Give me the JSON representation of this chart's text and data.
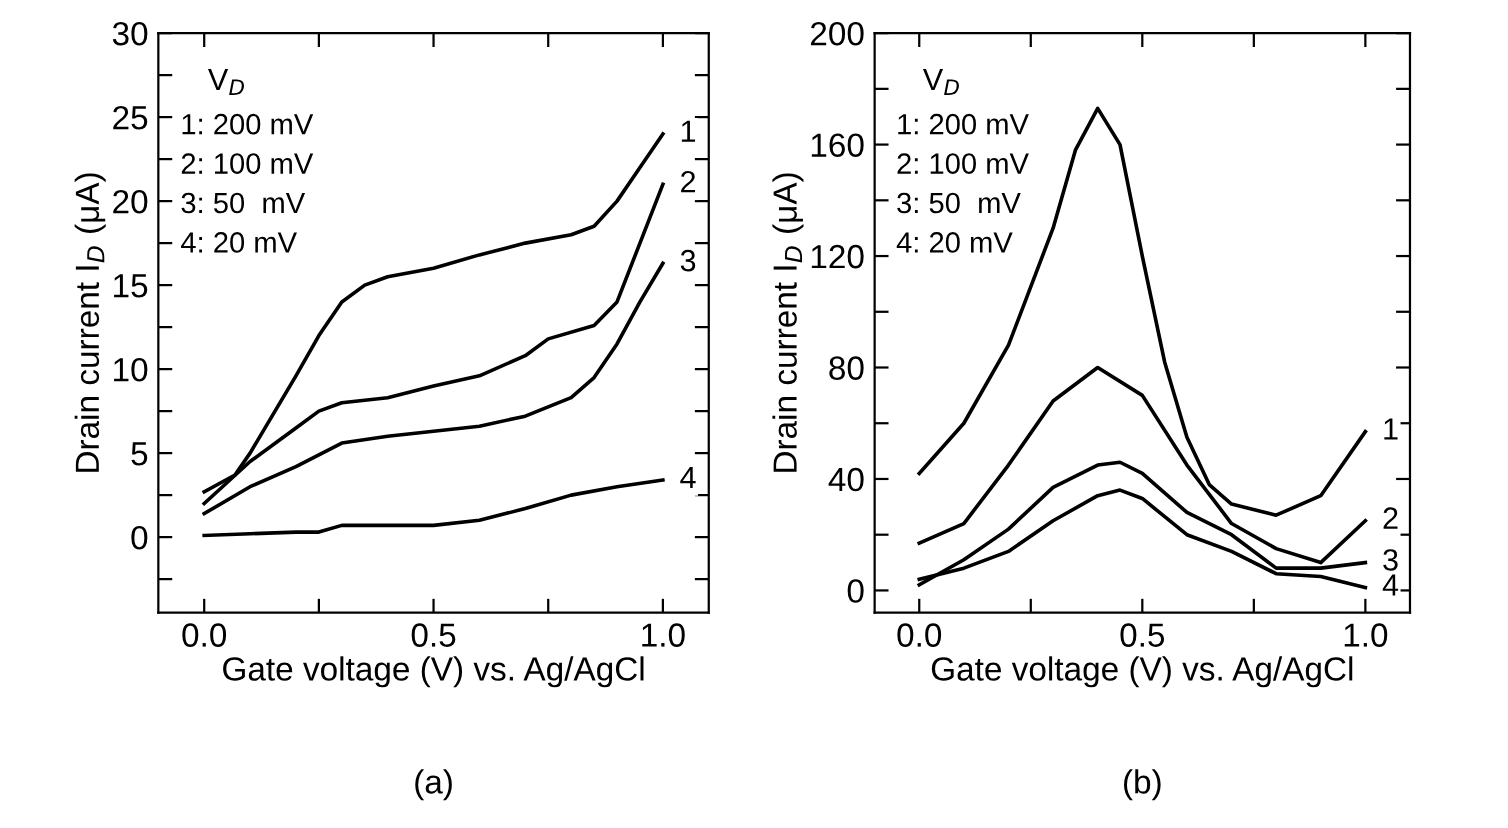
{
  "chart_data": [
    {
      "type": "line",
      "xlabel": "Gate voltage (V) vs. Ag/AgCl",
      "ylabel": "Drain current I$_{D}$ (μA)",
      "xlim": [
        -0.1,
        1.1
      ],
      "ylim": [
        -4.5,
        30
      ],
      "xticks": [
        {
          "value": 0.0,
          "label": "0.0"
        },
        {
          "value": 0.25,
          "label": null
        },
        {
          "value": 0.5,
          "label": "0.5"
        },
        {
          "value": 0.75,
          "label": null
        },
        {
          "value": 1.0,
          "label": "1.0"
        }
      ],
      "yticks": [
        {
          "value": -2.5,
          "label": null
        },
        0,
        {
          "value": 2.5,
          "label": null
        },
        5,
        {
          "value": 7.5,
          "label": null
        },
        10,
        {
          "value": 12.5,
          "label": null
        },
        15,
        {
          "value": 17.5,
          "label": null
        },
        20,
        {
          "value": 22.5,
          "label": null
        },
        25,
        {
          "value": 27.5,
          "label": null
        },
        30
      ],
      "grid": false,
      "legend": "right",
      "annotations": [
        "V$_{D}$",
        "1: 200 mV",
        "2: 100 mV",
        "3: 50  mV",
        "4: 20 mV",
        "(a)"
      ],
      "series": [
        {
          "name": "1",
          "color": "#000000",
          "x": [
            0,
            0.067,
            0.1,
            0.2,
            0.25,
            0.3,
            0.35,
            0.4,
            0.5,
            0.6,
            0.7,
            0.8,
            0.85,
            0.9,
            0.95,
            1.0
          ],
          "values": [
            2.7,
            3.7,
            5,
            9.6,
            12,
            14,
            15,
            15.5,
            16,
            16.8,
            17.5,
            18,
            18.5,
            20,
            22,
            24
          ]
        },
        {
          "name": "2",
          "color": "#000000",
          "x": [
            0,
            0.1,
            0.2,
            0.25,
            0.3,
            0.4,
            0.5,
            0.6,
            0.7,
            0.75,
            0.85,
            0.9,
            0.95,
            1.0
          ],
          "values": [
            2.0,
            4.5,
            6.5,
            7.5,
            8,
            8.3,
            9,
            9.6,
            10.8,
            11.8,
            12.6,
            14,
            17.5,
            21
          ]
        },
        {
          "name": "3",
          "color": "#000000",
          "x": [
            0,
            0.1,
            0.2,
            0.3,
            0.4,
            0.5,
            0.6,
            0.7,
            0.8,
            0.85,
            0.9,
            0.95,
            1.0
          ],
          "values": [
            1.4,
            3.0,
            4.2,
            5.6,
            6.0,
            6.3,
            6.6,
            7.2,
            8.3,
            9.5,
            11.5,
            14,
            16.3
          ]
        },
        {
          "name": "4",
          "color": "#000000",
          "x": [
            0,
            0.1,
            0.2,
            0.25,
            0.3,
            0.4,
            0.5,
            0.6,
            0.7,
            0.8,
            0.9,
            1.0
          ],
          "values": [
            0.1,
            0.2,
            0.3,
            0.3,
            0.7,
            0.7,
            0.7,
            1.0,
            1.7,
            2.5,
            3.0,
            3.4
          ]
        }
      ]
    },
    {
      "type": "line",
      "xlabel": "Gate voltage (V) vs. Ag/AgCl",
      "ylabel": "Drain current I$_{D}$ (μA)",
      "xlim": [
        -0.1,
        1.1
      ],
      "ylim": [
        -8,
        200
      ],
      "xticks": [
        {
          "value": 0.0,
          "label": "0.0"
        },
        {
          "value": 0.25,
          "label": null
        },
        {
          "value": 0.5,
          "label": "0.5"
        },
        {
          "value": 0.75,
          "label": null
        },
        {
          "value": 1.0,
          "label": "1.0"
        }
      ],
      "yticks": [
        0,
        {
          "value": 20,
          "label": null
        },
        40,
        {
          "value": 60,
          "label": null
        },
        80,
        {
          "value": 100,
          "label": null
        },
        120,
        {
          "value": 140,
          "label": null
        },
        160,
        {
          "value": 180,
          "label": null
        },
        200
      ],
      "grid": false,
      "legend": "right",
      "annotations": [
        "V$_{D}$",
        "1: 200 mV",
        "2: 100 mV",
        "3: 50  mV",
        "4: 20 mV",
        "(b)"
      ],
      "series": [
        {
          "name": "1",
          "color": "#000000",
          "x": [
            0,
            0.1,
            0.2,
            0.3,
            0.35,
            0.4,
            0.45,
            0.5,
            0.55,
            0.6,
            0.65,
            0.7,
            0.8,
            0.9,
            1.0
          ],
          "values": [
            42,
            60,
            88,
            130,
            158,
            173,
            160,
            120,
            82,
            55,
            38,
            31,
            27,
            34,
            57
          ]
        },
        {
          "name": "2",
          "color": "#000000",
          "x": [
            0,
            0.1,
            0.2,
            0.3,
            0.4,
            0.5,
            0.6,
            0.7,
            0.8,
            0.9,
            1.0
          ],
          "values": [
            17,
            24,
            45,
            68,
            80,
            70,
            45,
            24,
            15,
            10,
            25
          ]
        },
        {
          "name": "3",
          "color": "#000000",
          "x": [
            0,
            0.1,
            0.2,
            0.3,
            0.4,
            0.45,
            0.5,
            0.6,
            0.7,
            0.8,
            0.9,
            1.0
          ],
          "values": [
            2,
            11,
            22,
            37,
            45,
            46,
            42,
            28,
            20,
            8,
            8,
            10
          ]
        },
        {
          "name": "4",
          "color": "#000000",
          "x": [
            0,
            0.1,
            0.2,
            0.3,
            0.4,
            0.45,
            0.5,
            0.6,
            0.7,
            0.8,
            0.9,
            1.0
          ],
          "values": [
            4,
            8,
            14,
            25,
            34,
            36,
            33,
            20,
            14,
            6,
            5,
            1
          ]
        }
      ]
    }
  ]
}
